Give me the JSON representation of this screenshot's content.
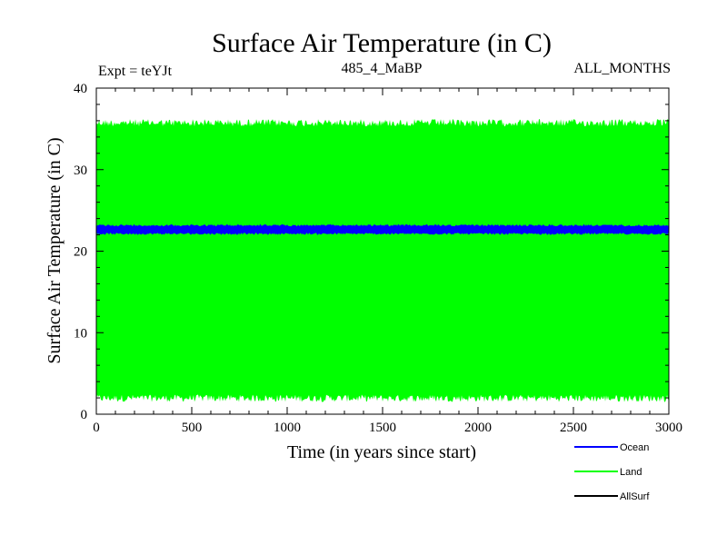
{
  "chart_data": {
    "type": "line",
    "title": "Surface Air Temperature (in C)",
    "subtitle_left": "Expt = teYJt",
    "subtitle_center": "485_4_MaBP",
    "subtitle_right": "ALL_MONTHS",
    "xlabel": "Time (in years since start)",
    "ylabel": "Surface Air Temperature (in C)",
    "xlim": [
      0,
      3000
    ],
    "ylim": [
      0,
      40
    ],
    "x_ticks": [
      0,
      500,
      1000,
      1500,
      2000,
      2500,
      3000
    ],
    "y_ticks": [
      0,
      10,
      20,
      30,
      40
    ],
    "grid": false,
    "legend_position": "bottom-right",
    "series": [
      {
        "name": "Ocean",
        "color": "#0000ff",
        "band": {
          "min": 22.0,
          "max": 23.3
        }
      },
      {
        "name": "Land",
        "color": "#00ff00",
        "band": {
          "min": 1.5,
          "max": 36.2
        }
      },
      {
        "name": "AllSurf",
        "color": "#000000",
        "band": null
      }
    ]
  }
}
